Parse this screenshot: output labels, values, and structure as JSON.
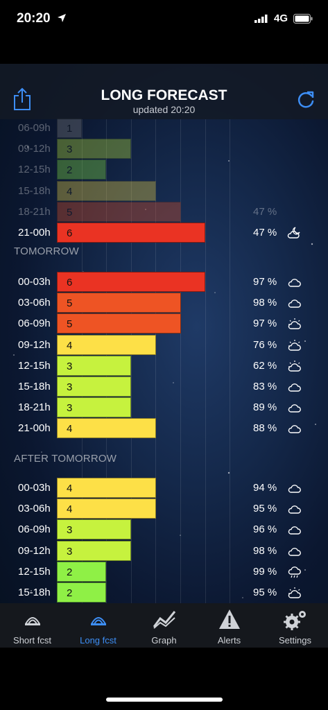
{
  "status": {
    "time": "20:20",
    "network": "4G"
  },
  "header": {
    "title": "LONG FORECAST",
    "updated": "updated  20:20"
  },
  "colors": {
    "level2": "#8ff046",
    "level3": "#c6f23e",
    "level4": "#fde047",
    "level5": "#ee5424",
    "level6": "#ea3323",
    "accent": "#3d8ef5"
  },
  "sections": {
    "tomorrow": "TOMORROW",
    "after_tomorrow": "AFTER TOMORROW"
  },
  "today_rows": [
    {
      "time": "06-09h",
      "value": "1",
      "pct": "",
      "icon": ""
    },
    {
      "time": "09-12h",
      "value": "3",
      "pct": "",
      "icon": ""
    },
    {
      "time": "12-15h",
      "value": "2",
      "pct": "",
      "icon": ""
    },
    {
      "time": "15-18h",
      "value": "4",
      "pct": "",
      "icon": ""
    },
    {
      "time": "18-21h",
      "value": "5",
      "pct": "47 %",
      "icon": ""
    },
    {
      "time": "21-00h",
      "value": "6",
      "pct": "47 %",
      "icon": "partly-cloudy-night-icon"
    }
  ],
  "tomorrow_rows": [
    {
      "time": "00-03h",
      "value": "6",
      "pct": "97 %",
      "icon": "cloud-icon"
    },
    {
      "time": "03-06h",
      "value": "5",
      "pct": "98 %",
      "icon": "cloud-icon"
    },
    {
      "time": "06-09h",
      "value": "5",
      "pct": "97 %",
      "icon": "partly-cloudy-icon"
    },
    {
      "time": "09-12h",
      "value": "4",
      "pct": "76 %",
      "icon": "partly-cloudy-icon"
    },
    {
      "time": "12-15h",
      "value": "3",
      "pct": "62 %",
      "icon": "partly-cloudy-icon"
    },
    {
      "time": "15-18h",
      "value": "3",
      "pct": "83 %",
      "icon": "cloud-icon"
    },
    {
      "time": "18-21h",
      "value": "3",
      "pct": "89 %",
      "icon": "cloud-icon"
    },
    {
      "time": "21-00h",
      "value": "4",
      "pct": "88 %",
      "icon": "cloud-icon"
    }
  ],
  "after_rows": [
    {
      "time": "00-03h",
      "value": "4",
      "pct": "94 %",
      "icon": "cloud-icon"
    },
    {
      "time": "03-06h",
      "value": "4",
      "pct": "95 %",
      "icon": "cloud-icon"
    },
    {
      "time": "06-09h",
      "value": "3",
      "pct": "96 %",
      "icon": "cloud-icon"
    },
    {
      "time": "09-12h",
      "value": "3",
      "pct": "98 %",
      "icon": "cloud-icon"
    },
    {
      "time": "12-15h",
      "value": "2",
      "pct": "99 %",
      "icon": "rain-cloud-icon"
    },
    {
      "time": "15-18h",
      "value": "2",
      "pct": "95 %",
      "icon": "partly-cloudy-icon"
    }
  ],
  "tabs": [
    {
      "label": "Short fcst",
      "icon": "aurora-icon"
    },
    {
      "label": "Long fcst",
      "icon": "aurora-icon"
    },
    {
      "label": "Graph",
      "icon": "graph-icon"
    },
    {
      "label": "Alerts",
      "icon": "alert-icon"
    },
    {
      "label": "Settings",
      "icon": "gear-icon"
    }
  ],
  "active_tab": 1
}
